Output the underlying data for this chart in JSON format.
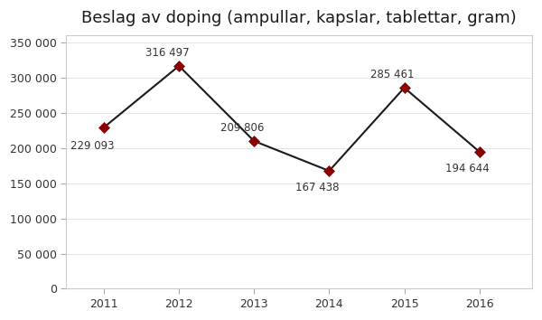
{
  "title": "Beslag av doping (ampullar, kapslar, tablettar, gram)",
  "years": [
    2011,
    2012,
    2013,
    2014,
    2015,
    2016
  ],
  "values": [
    229093,
    316497,
    209806,
    167438,
    285461,
    194644
  ],
  "labels": [
    "229 093",
    "316 497",
    "209 806",
    "167 438",
    "285 461",
    "194 644"
  ],
  "line_color": "#1a1a1a",
  "marker_color": "#8B0000",
  "marker_style": "D",
  "marker_size": 6,
  "ylim": [
    0,
    360000
  ],
  "yticks": [
    0,
    50000,
    100000,
    150000,
    200000,
    250000,
    300000,
    350000
  ],
  "ytick_labels": [
    "0",
    "50 000",
    "100 000",
    "150 000",
    "200 000",
    "250 000",
    "300 000",
    "350 000"
  ],
  "background_color": "#ffffff",
  "border_color": "#aaaaaa",
  "title_fontsize": 13,
  "label_fontsize": 8.5,
  "tick_fontsize": 9
}
